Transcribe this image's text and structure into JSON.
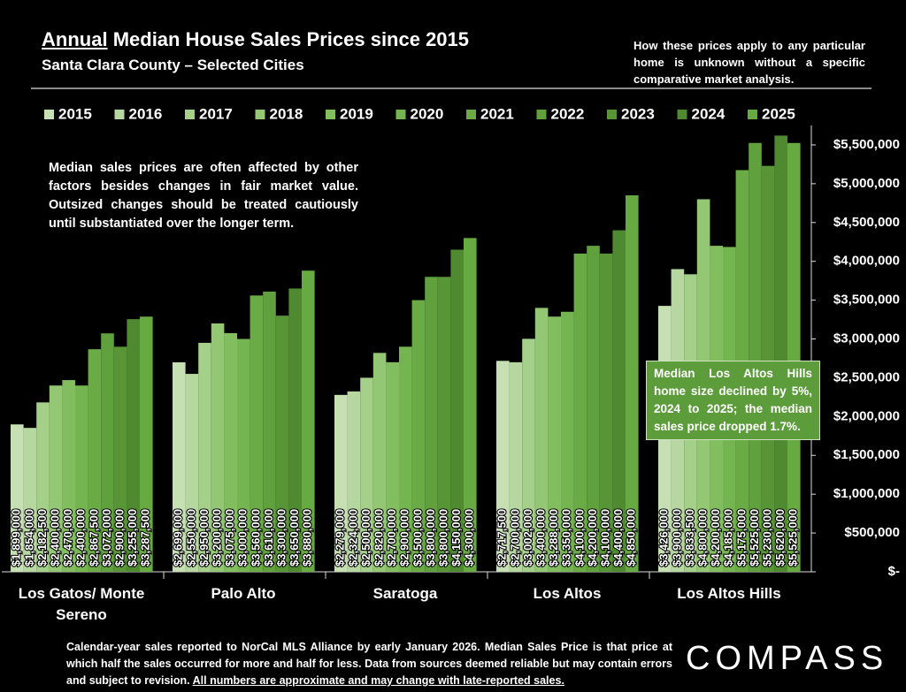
{
  "chart_data": {
    "type": "bar",
    "title_underlined": "Annual",
    "title": "Median House Sales Prices since 2015",
    "subtitle": "Santa Clara County – Selected Cities",
    "note": "How these prices apply to any particular home is unknown without a specific comparative market analysis.",
    "annotation": "Median sales prices are often affected by other factors besides changes in fair market value. Outsized changes should be treated cautiously until substantiated over the longer term.",
    "callout": "Median Los Altos Hills home size declined by 5%, 2024 to 2025; the median sales price dropped 1.7%.",
    "footer": "Calendar-year sales reported to NorCal MLS Alliance by early January 2026. Median Sales Price is that price at which half the sales occurred for more and half for less. Data from sources deemed reliable but may contain errors and subject to revision.",
    "footer_underlined": "All numbers are approximate and may change with late-reported sales.",
    "logo": "COMPASS",
    "categories": [
      "Los Gatos/ Monte Sereno",
      "Palo Alto",
      "Saratoga",
      "Los Altos",
      "Los Altos Hills"
    ],
    "series": [
      {
        "name": "2015",
        "color": "#c6e0b4",
        "values": [
          1899000,
          2699000,
          2279000,
          2717500,
          3426000
        ],
        "value_labels": [
          "$1,899,000",
          "$2,699,000",
          "$2,279,000",
          "$2,717,500",
          "$3,426,000"
        ]
      },
      {
        "name": "2016",
        "color": "#b6d8a0",
        "values": [
          1854000,
          2550000,
          2324000,
          2700000,
          3900000
        ],
        "value_labels": [
          "$1,854,000",
          "$2,550,000",
          "$2,324,000",
          "$2,700,000",
          "$3,900,000"
        ]
      },
      {
        "name": "2017",
        "color": "#a5d08a",
        "values": [
          2182500,
          2950000,
          2500000,
          3002000,
          3833500
        ],
        "value_labels": [
          "$2,182,500",
          "$2,950,000",
          "$2,500,000",
          "$3,002,000",
          "$3,833,500"
        ]
      },
      {
        "name": "2018",
        "color": "#93c774",
        "values": [
          2400000,
          3200000,
          2820000,
          3400000,
          4800000
        ],
        "value_labels": [
          "$2,400,000",
          "$3,200,000",
          "$2,820,000",
          "$3,400,000",
          "$4,800,000"
        ]
      },
      {
        "name": "2019",
        "color": "#82be60",
        "values": [
          2470000,
          3075000,
          2700000,
          3288000,
          4200000
        ],
        "value_labels": [
          "$2,470,000",
          "$3,075,000",
          "$2,700,000",
          "$3,288,000",
          "$4,200,000"
        ]
      },
      {
        "name": "2020",
        "color": "#75b551",
        "values": [
          2400000,
          3000000,
          2900000,
          3350000,
          4185000
        ],
        "value_labels": [
          "$2,400,000",
          "$3,000,000",
          "$2,900,000",
          "$3,350,000",
          "$4,185,000"
        ]
      },
      {
        "name": "2021",
        "color": "#6aab46",
        "values": [
          2867500,
          3560000,
          3500000,
          4100000,
          5175000
        ],
        "value_labels": [
          "$2,867,500",
          "$3,560,000",
          "$3,500,000",
          "$4,100,000",
          "$5,175,000"
        ]
      },
      {
        "name": "2022",
        "color": "#60a03d",
        "values": [
          3072000,
          3610000,
          3800000,
          4200000,
          5525000
        ],
        "value_labels": [
          "$3,072,000",
          "$3,610,000",
          "$3,800,000",
          "$4,200,000",
          "$5,525,000"
        ]
      },
      {
        "name": "2023",
        "color": "#579536",
        "values": [
          2900000,
          3300000,
          3800000,
          4100000,
          5230000
        ],
        "value_labels": [
          "$2,900,000",
          "$3,300,000",
          "$3,800,000",
          "$4,100,000",
          "$5,230,000"
        ]
      },
      {
        "name": "2024",
        "color": "#4f8a30",
        "values": [
          3255000,
          3650000,
          4150000,
          4400000,
          5620000
        ],
        "value_labels": [
          "$3,255,000",
          "$3,650,000",
          "$4,150,000",
          "$4,400,000",
          "$5,620,000"
        ]
      },
      {
        "name": "2025",
        "color": "#68aa42",
        "values": [
          3287500,
          3880000,
          4300000,
          4850000,
          5525000
        ],
        "value_labels": [
          "$3,287,500",
          "$3,880,000",
          "$4,300,000",
          "$4,850,000",
          "$5,525,000"
        ]
      }
    ],
    "ylim": [
      0,
      5750000
    ],
    "yticks": [
      {
        "value": 0,
        "label": "$-"
      },
      {
        "value": 500000,
        "label": "$500,000"
      },
      {
        "value": 1000000,
        "label": "$1,000,000"
      },
      {
        "value": 1500000,
        "label": "$1,500,000"
      },
      {
        "value": 2000000,
        "label": "$2,000,000"
      },
      {
        "value": 2500000,
        "label": "$2,500,000"
      },
      {
        "value": 3000000,
        "label": "$3,000,000"
      },
      {
        "value": 3500000,
        "label": "$3,500,000"
      },
      {
        "value": 4000000,
        "label": "$4,000,000"
      },
      {
        "value": 4500000,
        "label": "$4,500,000"
      },
      {
        "value": 5000000,
        "label": "$5,000,000"
      },
      {
        "value": 5500000,
        "label": "$5,500,000"
      }
    ],
    "grid": false,
    "legend": "top"
  }
}
